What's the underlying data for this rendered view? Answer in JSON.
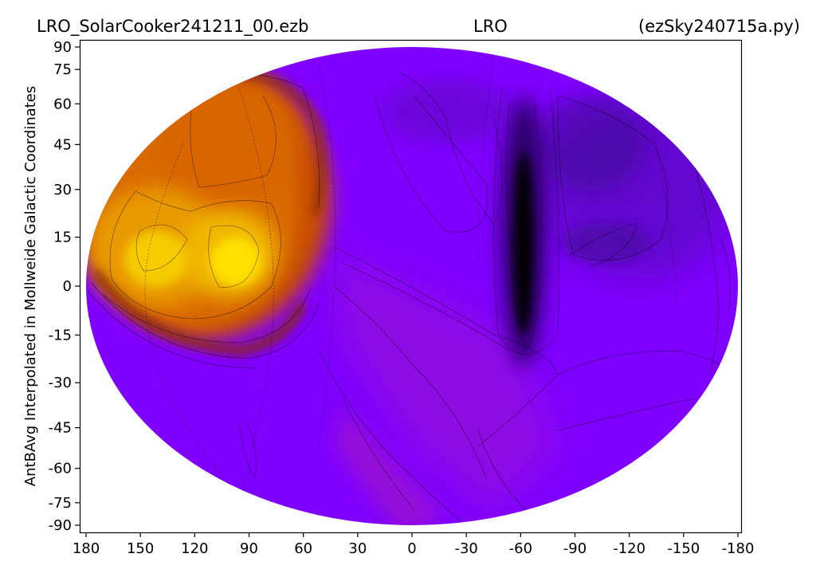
{
  "chart_data": {
    "type": "heatmap",
    "projection": "mollweide",
    "title_left": "LRO_SolarCooker241211_00.ezb",
    "title_center": "LRO",
    "title_right": "(ezSky240715a.py)",
    "xlabel": "",
    "ylabel": "AntBAvg Interpolated in Mollweide Galactic Coordinates",
    "x_ticks": [
      180,
      150,
      120,
      90,
      60,
      30,
      0,
      -30,
      -60,
      -90,
      -120,
      -150,
      -180
    ],
    "x_tick_labels": [
      "180",
      "150",
      "120",
      "90",
      "60",
      "30",
      "0",
      "-30",
      "-60",
      "-90",
      "-120",
      "-150",
      "-180"
    ],
    "y_ticks": [
      90,
      75,
      60,
      45,
      30,
      15,
      0,
      -15,
      -30,
      -45,
      -60,
      -75,
      -90
    ],
    "y_tick_labels": [
      "90",
      "75",
      "60",
      "45",
      "30",
      "15",
      "0",
      "-15",
      "-30",
      "-45",
      "-60",
      "-75",
      "-90"
    ],
    "xlim": [
      180,
      -180
    ],
    "ylim": [
      -90,
      90
    ],
    "colormap": "gnuplot",
    "colors": {
      "background": "#8000ff",
      "hot": "#ffe000",
      "warm": "#d96000",
      "cold": "#000000"
    },
    "features": [
      {
        "lon": 120,
        "lat": 35,
        "level": 0.62,
        "kind": "warm lobe"
      },
      {
        "lon": 96,
        "lat": 7,
        "level": 0.95,
        "kind": "hot peak"
      },
      {
        "lon": 137,
        "lat": 5,
        "level": 0.88,
        "kind": "hot peak"
      },
      {
        "lon": 92,
        "lat": 48,
        "level": 0.6,
        "kind": "warm lobe"
      },
      {
        "lon": -60,
        "lat": 5,
        "level": 0.0,
        "kind": "cold minimum"
      },
      {
        "lon": -105,
        "lat": 20,
        "level": 0.22,
        "kind": "cool region"
      },
      {
        "lon": -30,
        "lat": -15,
        "level": 0.38,
        "kind": "magenta band"
      }
    ]
  }
}
